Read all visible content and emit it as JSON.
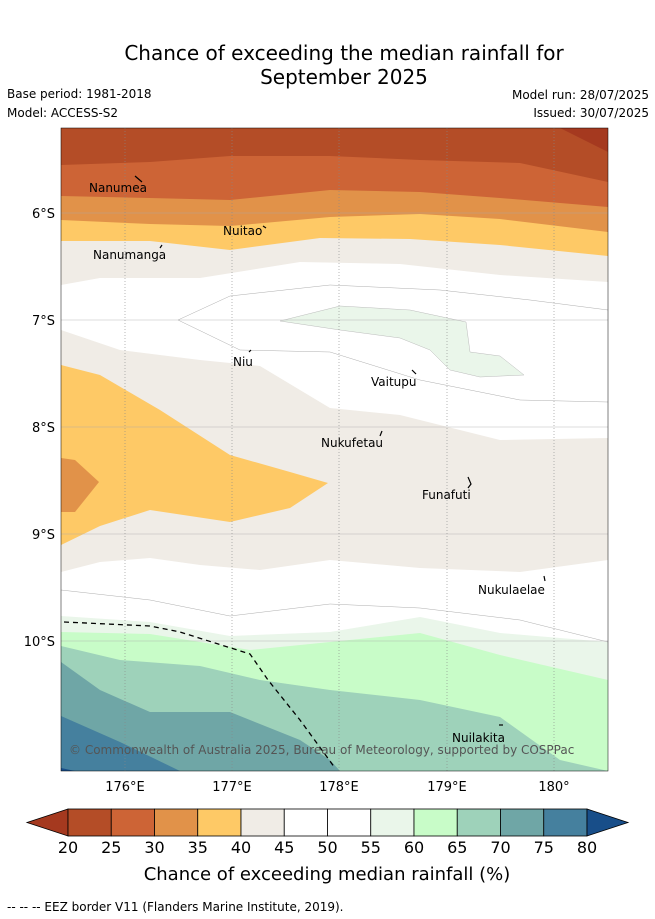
{
  "title_line1": "Chance of exceeding the median rainfall for",
  "title_line2": "September 2025",
  "base_period": "Base period: 1981-2018",
  "model": "Model: ACCESS-S2",
  "model_run": "Model run: 28/07/2025",
  "issued": "Issued: 30/07/2025",
  "lat_labels": [
    "6°S",
    "7°S",
    "8°S",
    "9°S",
    "10°S"
  ],
  "lon_labels": [
    "176°E",
    "177°E",
    "178°E",
    "179°E",
    "180°"
  ],
  "places": [
    "Nanumea",
    "Nuitao",
    "Nanumanga",
    "Niu",
    "Vaitupu",
    "Nukufetau",
    "Funafuti",
    "Nukulaelae",
    "Nuilakita"
  ],
  "copyright": "© Commonwealth of Australia 2025, Bureau of Meteorology, supported by COSPPac",
  "colorbar": {
    "ticks": [
      "20",
      "25",
      "30",
      "35",
      "40",
      "45",
      "50",
      "55",
      "60",
      "65",
      "70",
      "75",
      "80"
    ],
    "colors": [
      "#a5391f",
      "#b44d27",
      "#cd6436",
      "#e19249",
      "#fec966",
      "#f0ece6",
      "#ffffff",
      "#ffffff",
      "#eaf6ea",
      "#c8fcc8",
      "#9ed2ba",
      "#6fa6a6",
      "#45809e",
      "#184e89"
    ],
    "label": "Chance of exceeding median rainfall (%)"
  },
  "footnote": "--  --  -- EEZ border V11 (Flanders Marine Institute, 2019)."
}
